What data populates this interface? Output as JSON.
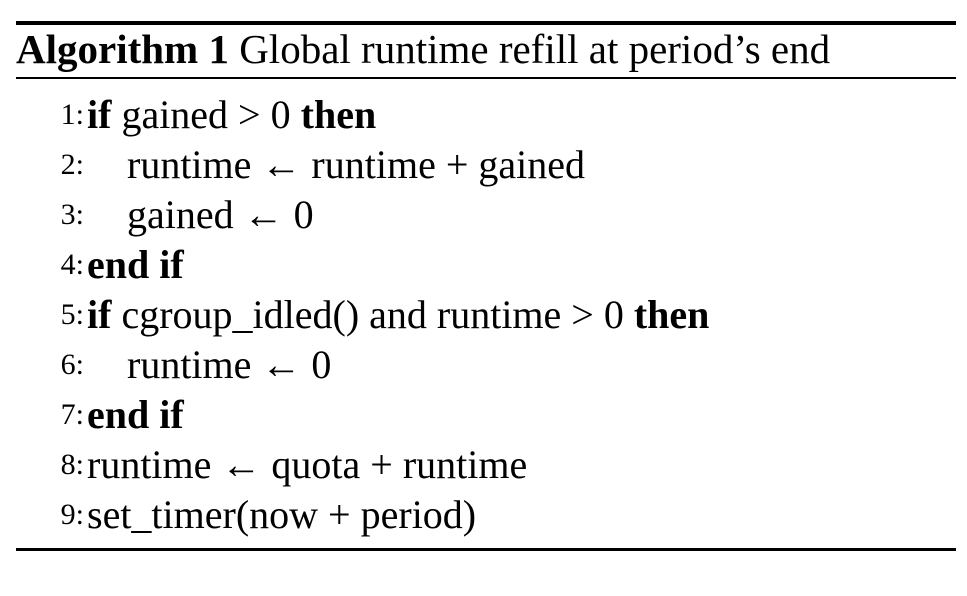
{
  "algorithm": {
    "label": "Algorithm 1",
    "title": "Global runtime refill at period’s end",
    "lines": [
      {
        "no": "1:",
        "parts": [
          {
            "kw": "if"
          },
          {
            "t": " gained > 0 "
          },
          {
            "kw": "then"
          }
        ]
      },
      {
        "no": "2:",
        "indent": 1,
        "parts": [
          {
            "t": "runtime ← runtime + gained"
          }
        ]
      },
      {
        "no": "3:",
        "indent": 1,
        "parts": [
          {
            "t": "gained ← 0"
          }
        ]
      },
      {
        "no": "4:",
        "parts": [
          {
            "kw": "end if"
          }
        ]
      },
      {
        "no": "5:",
        "parts": [
          {
            "kw": "if"
          },
          {
            "t": " cgroup_idled() and runtime > 0 "
          },
          {
            "kw": "then"
          }
        ]
      },
      {
        "no": "6:",
        "indent": 1,
        "parts": [
          {
            "t": "runtime ← 0"
          }
        ]
      },
      {
        "no": "7:",
        "parts": [
          {
            "kw": "end if"
          }
        ]
      },
      {
        "no": "8:",
        "parts": [
          {
            "t": "runtime ← quota + runtime"
          }
        ]
      },
      {
        "no": "9:",
        "parts": [
          {
            "t": "set_timer(now + period)"
          }
        ]
      }
    ]
  }
}
